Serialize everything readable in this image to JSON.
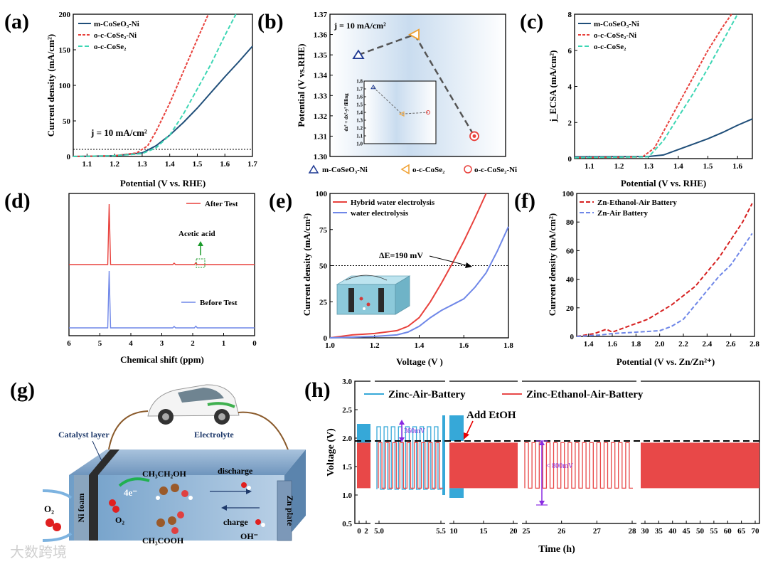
{
  "panels": {
    "a": {
      "label": "(a)",
      "xlabel": "Potential (V vs. RHE)",
      "ylabel": "Current density (mA/cm²)",
      "xlim": [
        1.05,
        1.7
      ],
      "ylim": [
        0,
        200
      ],
      "xticks": [
        1.1,
        1.2,
        1.3,
        1.4,
        1.5,
        1.6,
        1.7
      ],
      "yticks": [
        0,
        50,
        100,
        150,
        200
      ],
      "annotation": "j = 10 mA/cm²",
      "refline": 10,
      "legend": [
        "m-CoSeO₃-Ni",
        "o-c-CoSe₂-Ni",
        "o-c-CoSe₂"
      ],
      "series": [
        {
          "name": "m-CoSeO₃-Ni",
          "color": "#1f4e79",
          "dash": "",
          "x": [
            1.05,
            1.2,
            1.3,
            1.35,
            1.4,
            1.45,
            1.5,
            1.55,
            1.6,
            1.65,
            1.7
          ],
          "y": [
            0,
            1,
            5,
            15,
            30,
            48,
            68,
            90,
            112,
            133,
            155
          ]
        },
        {
          "name": "o-c-CoSe₂-Ni",
          "color": "#e8413c",
          "dash": "4,2",
          "x": [
            1.05,
            1.2,
            1.28,
            1.32,
            1.35,
            1.4,
            1.45,
            1.5,
            1.54
          ],
          "y": [
            0,
            1,
            5,
            15,
            35,
            75,
            120,
            165,
            200
          ]
        },
        {
          "name": "o-c-CoSe₂",
          "color": "#3dd6b4",
          "dash": "6,3",
          "x": [
            1.05,
            1.2,
            1.3,
            1.35,
            1.4,
            1.45,
            1.5,
            1.55,
            1.6,
            1.64
          ],
          "y": [
            0,
            1,
            4,
            12,
            30,
            60,
            95,
            130,
            170,
            200
          ]
        }
      ]
    },
    "b": {
      "label": "(b)",
      "annotation": "j = 10 mA/cm²",
      "ylabel": "Potential (V vs.RHE)",
      "ylim": [
        1.3,
        1.37
      ],
      "yticks": [
        1.3,
        1.31,
        1.32,
        1.33,
        1.34,
        1.35,
        1.36,
        1.37
      ],
      "categories": [
        "m-CoSeO₃-Ni",
        "o-c-CoSe₂",
        "o-c-CoSe₂-Ni"
      ],
      "values": [
        1.35,
        1.36,
        1.31
      ],
      "colors": [
        "#1f3a93",
        "#f0a030",
        "#e8413c"
      ],
      "inset": {
        "ylabel": "dz² + dx²-y² filling",
        "ylim": [
          1.0,
          1.8
        ],
        "yticks": [
          1.0,
          1.1,
          1.2,
          1.3,
          1.4,
          1.5,
          1.6,
          1.7,
          1.8
        ],
        "values": [
          1.72,
          1.38,
          1.4
        ]
      }
    },
    "c": {
      "label": "(c)",
      "xlabel": "Potential (V vs. RHE)",
      "ylabel": "j_ECSA (mA/cm²)",
      "xlim": [
        1.05,
        1.65
      ],
      "ylim": [
        0,
        8
      ],
      "xticks": [
        1.1,
        1.2,
        1.3,
        1.4,
        1.5,
        1.6
      ],
      "yticks": [
        0,
        2,
        4,
        6,
        8
      ],
      "legend": [
        "m-CoSeO₃-Ni",
        "o-c-CoSe₂-Ni",
        "o-c-CoSe₂"
      ],
      "series": [
        {
          "name": "m-CoSeO₃-Ni",
          "color": "#1f4e79",
          "dash": "",
          "x": [
            1.05,
            1.3,
            1.35,
            1.4,
            1.45,
            1.5,
            1.55,
            1.6,
            1.65
          ],
          "y": [
            0.1,
            0.12,
            0.2,
            0.5,
            0.8,
            1.1,
            1.45,
            1.85,
            2.2
          ]
        },
        {
          "name": "o-c-CoSe₂-Ni",
          "color": "#e8413c",
          "dash": "4,2",
          "x": [
            1.05,
            1.28,
            1.32,
            1.36,
            1.4,
            1.45,
            1.5,
            1.55,
            1.58
          ],
          "y": [
            0.05,
            0.1,
            0.6,
            1.8,
            3.0,
            4.5,
            6.0,
            7.3,
            8
          ]
        },
        {
          "name": "o-c-CoSe₂",
          "color": "#3dd6b4",
          "dash": "6,3",
          "x": [
            1.05,
            1.3,
            1.35,
            1.4,
            1.45,
            1.5,
            1.55,
            1.6
          ],
          "y": [
            0.05,
            0.1,
            1.0,
            2.3,
            3.6,
            5.0,
            6.5,
            8
          ]
        }
      ]
    },
    "d": {
      "label": "(d)",
      "xlabel": "Chemical shift (ppm)",
      "xticks": [
        6,
        5,
        4,
        3,
        2,
        1,
        0
      ],
      "after_label": "After Test",
      "before_label": "Before Test",
      "acid_label": "Acetic acid",
      "after_color": "#e8413c",
      "before_color": "#6f87e8",
      "peaks": [
        {
          "ppm": 4.7,
          "height": 1.0
        },
        {
          "ppm": 2.6,
          "height": 0.02
        },
        {
          "ppm": 1.9,
          "height": 0.03
        }
      ]
    },
    "e": {
      "label": "(e)",
      "xlabel": "Voltage (V )",
      "ylabel": "Current density (mA/cm²)",
      "xlim": [
        1.0,
        1.8
      ],
      "ylim": [
        0,
        100
      ],
      "xticks": [
        1.0,
        1.2,
        1.4,
        1.6,
        1.8
      ],
      "yticks": [
        0,
        25,
        50,
        75,
        100
      ],
      "annotation": "ΔE=190 mV",
      "refline": 50,
      "legend": [
        "Hybrid water electrolysis",
        "water electrolysis"
      ],
      "series": [
        {
          "name": "Hybrid water electrolysis",
          "color": "#e8413c",
          "dash": "",
          "x": [
            1.0,
            1.1,
            1.2,
            1.3,
            1.35,
            1.4,
            1.45,
            1.5,
            1.55,
            1.6,
            1.65,
            1.7
          ],
          "y": [
            0,
            2,
            3,
            5,
            8,
            14,
            25,
            38,
            52,
            67,
            83,
            100
          ]
        },
        {
          "name": "water electrolysis",
          "color": "#6f87e8",
          "dash": "",
          "x": [
            1.0,
            1.2,
            1.3,
            1.35,
            1.4,
            1.45,
            1.5,
            1.55,
            1.6,
            1.65,
            1.7,
            1.75,
            1.8
          ],
          "y": [
            0,
            1,
            2,
            4,
            8,
            14,
            19,
            23,
            27,
            35,
            45,
            60,
            77
          ]
        }
      ]
    },
    "f": {
      "label": "(f)",
      "xlabel": "Potential (V vs. Zn/Zn²⁺)",
      "ylabel": "Current density (mA/cm²)",
      "xlim": [
        1.3,
        2.8
      ],
      "ylim": [
        0,
        100
      ],
      "xticks": [
        1.4,
        1.6,
        1.8,
        2.0,
        2.2,
        2.4,
        2.6,
        2.8
      ],
      "yticks": [
        0,
        20,
        40,
        60,
        80,
        100
      ],
      "legend": [
        "Zn-Ethanol-Air Battery",
        "Zn-Air Battery"
      ],
      "series": [
        {
          "name": "Zn-Ethanol-Air Battery",
          "color": "#d61f1f",
          "dash": "6,3",
          "x": [
            1.3,
            1.45,
            1.55,
            1.6,
            1.7,
            1.9,
            2.1,
            2.3,
            2.5,
            2.7,
            2.78
          ],
          "y": [
            0,
            2,
            5,
            3,
            6,
            12,
            22,
            35,
            55,
            80,
            93
          ]
        },
        {
          "name": "Zn-Air Battery",
          "color": "#6f87e8",
          "dash": "6,3",
          "x": [
            1.3,
            1.5,
            1.6,
            1.8,
            2.0,
            2.1,
            2.2,
            2.3,
            2.4,
            2.5,
            2.6,
            2.7,
            2.78
          ],
          "y": [
            0,
            1,
            2,
            3,
            4,
            7,
            12,
            22,
            32,
            42,
            50,
            62,
            72
          ]
        }
      ]
    },
    "g": {
      "label": "(g)",
      "catalyst_layer": "Catalyst layer",
      "electrolyte": "Electrolyte",
      "ethanol": "CH₃CH₂OH",
      "acetic": "CH₃COOH",
      "discharge": "discharge",
      "charge": "charge",
      "four_e": "4e⁻",
      "o2_left": "O₂",
      "o2_inner": "O₂",
      "oh": "OH⁻",
      "ni_foam": "Ni foam",
      "zn_plate": "Zn plate"
    },
    "h": {
      "label": "(h)",
      "xlabel": "Time (h)",
      "ylabel": "Voltage (V)",
      "ylim": [
        0.5,
        3.0
      ],
      "yticks": [
        0.5,
        1.0,
        1.5,
        2.0,
        2.5,
        3.0
      ],
      "segment_ticks": [
        [
          "0",
          "2"
        ],
        [
          "5.0",
          "5.5"
        ],
        [
          "10",
          "15",
          "20"
        ],
        [
          "25",
          "26",
          "27",
          "28"
        ],
        [
          "30",
          "35",
          "40",
          "45",
          "50",
          "55",
          "60",
          "65",
          "70"
        ]
      ],
      "legend": [
        "Zinc-Air-Battery",
        "Zinc-Ethanol-Air-Battery"
      ],
      "colors": [
        "#36a8d8",
        "#e84848"
      ],
      "add_etoh": "Add EtOH",
      "gap_a": "360mV",
      "gap_b": "< 800mV",
      "zab_charge": 2.2,
      "zab_discharge": 1.1,
      "zeab_charge": 1.92,
      "zeab_discharge": 1.12
    },
    "watermark": "大数跨境"
  }
}
